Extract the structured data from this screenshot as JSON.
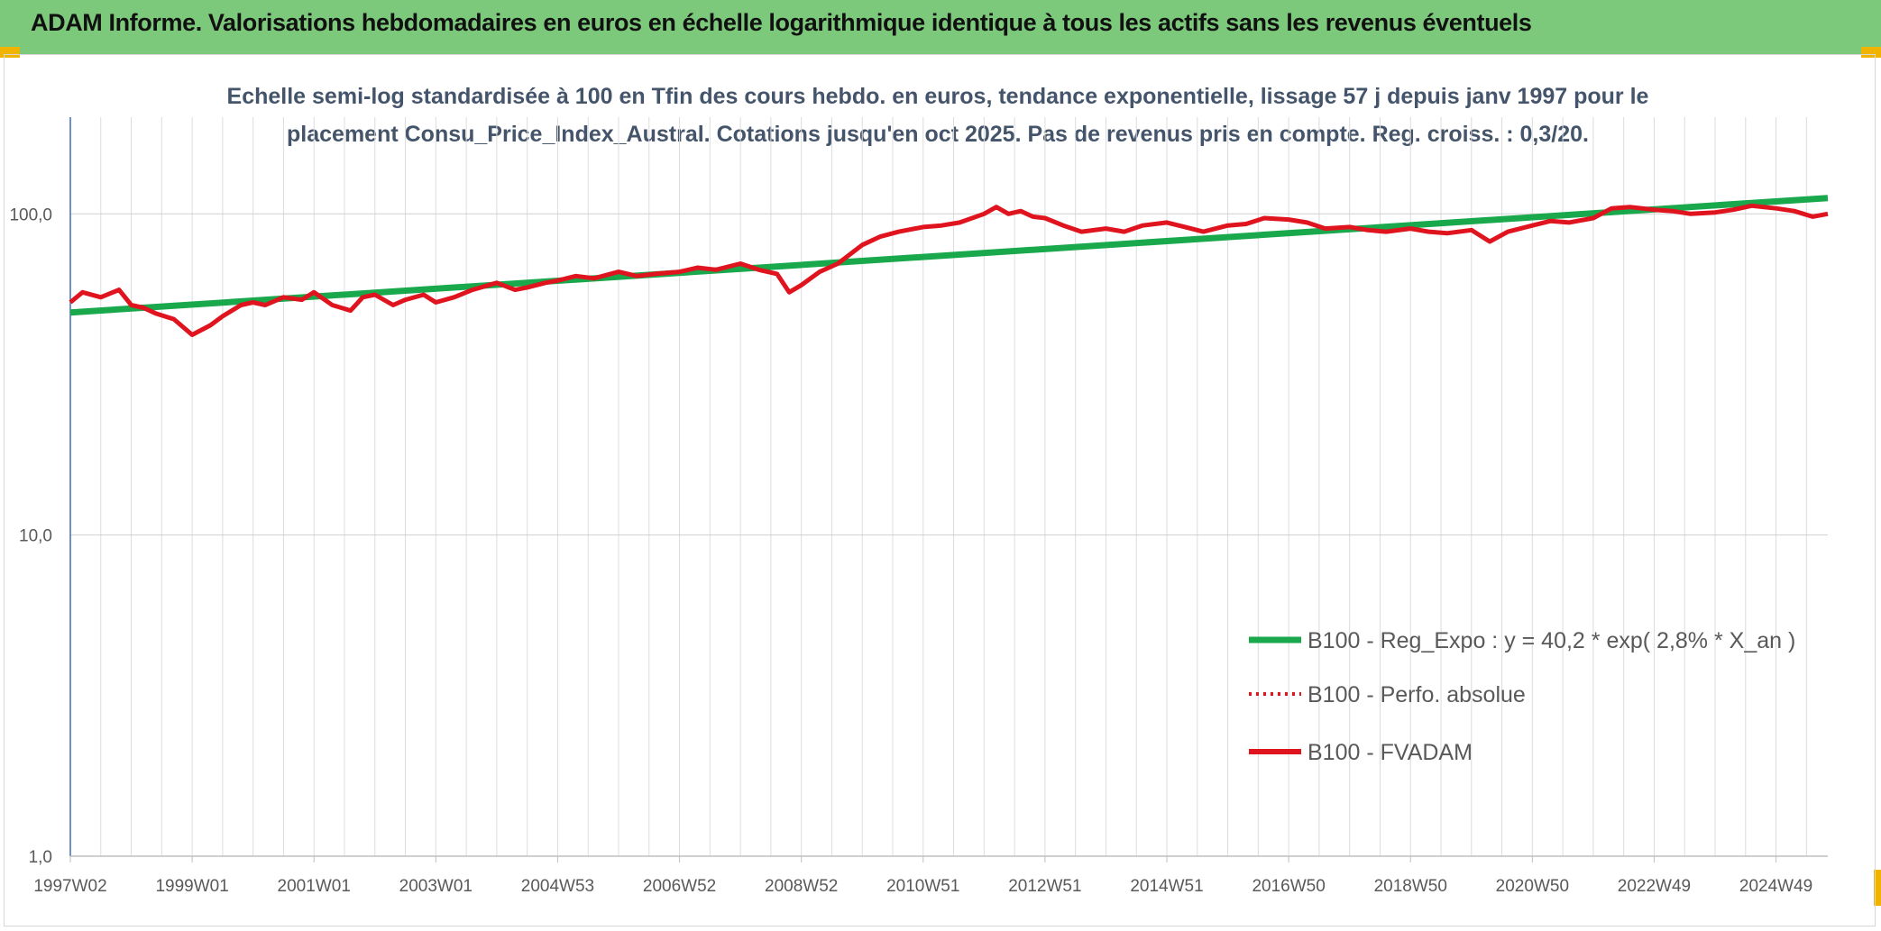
{
  "header": {
    "title": "ADAM Informe. Valorisations hebdomadaires en euros en échelle logarithmique identique à tous les actifs sans les revenus éventuels",
    "bg_color": "#7dc97b",
    "corner_color": "#f0b400"
  },
  "chart_data": {
    "type": "line",
    "subtitle_lines": [
      "Echelle semi-log standardisée à 100 en Tfin des cours hebdo. en euros, tendance exponentielle, lissage 57 j depuis janv 1997 pour le",
      "placement Consu_Price_Index_Austral. Cotations jusqu'en oct 2025. Pas de revenus pris en compte. Reg. croiss. : 0,3/20."
    ],
    "y_scale": "log",
    "ylim": [
      1,
      200
    ],
    "xlim": [
      1997.0,
      2025.85
    ],
    "y_ticks": [
      {
        "value": 1,
        "label": "1,0"
      },
      {
        "value": 10,
        "label": "10,0"
      },
      {
        "value": 100,
        "label": "100,0"
      }
    ],
    "x_ticks": [
      {
        "pos": 1997.0,
        "label": "1997W02"
      },
      {
        "pos": 1999.0,
        "label": "1999W01"
      },
      {
        "pos": 2001.0,
        "label": "2001W01"
      },
      {
        "pos": 2003.0,
        "label": "2003W01"
      },
      {
        "pos": 2005.0,
        "label": "2004W53"
      },
      {
        "pos": 2007.0,
        "label": "2006W52"
      },
      {
        "pos": 2009.0,
        "label": "2008W52"
      },
      {
        "pos": 2011.0,
        "label": "2010W51"
      },
      {
        "pos": 2013.0,
        "label": "2012W51"
      },
      {
        "pos": 2015.0,
        "label": "2014W51"
      },
      {
        "pos": 2017.0,
        "label": "2016W50"
      },
      {
        "pos": 2019.0,
        "label": "2018W50"
      },
      {
        "pos": 2021.0,
        "label": "2020W50"
      },
      {
        "pos": 2023.0,
        "label": "2022W49"
      },
      {
        "pos": 2025.0,
        "label": "2024W49"
      }
    ],
    "grid": "vertical and horizontal",
    "legend_position": "bottom-right",
    "series": [
      {
        "name": "B100 - Reg_Expo : y = 40,2 * exp( 2,8% *  X_an )",
        "color": "#19a84c",
        "style": "solid-thick",
        "x": [
          1997.0,
          2025.85
        ],
        "y": [
          49.3,
          112.0
        ]
      },
      {
        "name": "B100 - Perfo. absolue",
        "color": "#e0141e",
        "style": "dotted",
        "x": [],
        "y": []
      },
      {
        "name": "B100 - FVADAM",
        "color": "#e0141e",
        "style": "solid",
        "x": [
          1997.0,
          1997.2,
          1997.5,
          1997.8,
          1998.0,
          1998.2,
          1998.4,
          1998.7,
          1999.0,
          1999.3,
          1999.5,
          1999.8,
          2000.0,
          2000.2,
          2000.5,
          2000.8,
          2001.0,
          2001.3,
          2001.6,
          2001.8,
          2002.0,
          2002.3,
          2002.5,
          2002.8,
          2003.0,
          2003.3,
          2003.6,
          2004.0,
          2004.3,
          2004.5,
          2004.8,
          2005.0,
          2005.3,
          2005.6,
          2006.0,
          2006.3,
          2006.6,
          2007.0,
          2007.3,
          2007.6,
          2008.0,
          2008.3,
          2008.6,
          2008.8,
          2009.0,
          2009.3,
          2009.6,
          2010.0,
          2010.3,
          2010.6,
          2011.0,
          2011.3,
          2011.6,
          2012.0,
          2012.2,
          2012.4,
          2012.6,
          2012.8,
          2013.0,
          2013.3,
          2013.6,
          2014.0,
          2014.3,
          2014.6,
          2015.0,
          2015.3,
          2015.6,
          2016.0,
          2016.3,
          2016.6,
          2017.0,
          2017.3,
          2017.6,
          2018.0,
          2018.3,
          2018.6,
          2019.0,
          2019.3,
          2019.6,
          2020.0,
          2020.3,
          2020.6,
          2021.0,
          2021.3,
          2021.6,
          2022.0,
          2022.3,
          2022.6,
          2023.0,
          2023.3,
          2023.6,
          2024.0,
          2024.3,
          2024.6,
          2025.0,
          2025.3,
          2025.6,
          2025.85
        ],
        "y": [
          53,
          57,
          55,
          58,
          52,
          51,
          49,
          47,
          42,
          45,
          48,
          52,
          53,
          52,
          55,
          54,
          57,
          52,
          50,
          55,
          56,
          52,
          54,
          56,
          53,
          55,
          58,
          61,
          58,
          59,
          61,
          62,
          64,
          63,
          66,
          64,
          65,
          66,
          68,
          67,
          70,
          67,
          65,
          57,
          60,
          66,
          70,
          80,
          85,
          88,
          91,
          92,
          94,
          100,
          105,
          100,
          102,
          98,
          97,
          92,
          88,
          90,
          88,
          92,
          94,
          91,
          88,
          92,
          93,
          97,
          96,
          94,
          90,
          91,
          89,
          88,
          90,
          88,
          87,
          89,
          82,
          88,
          92,
          95,
          94,
          97,
          104,
          105,
          103,
          102,
          100,
          101,
          103,
          106,
          104,
          102,
          98,
          100
        ]
      }
    ]
  }
}
